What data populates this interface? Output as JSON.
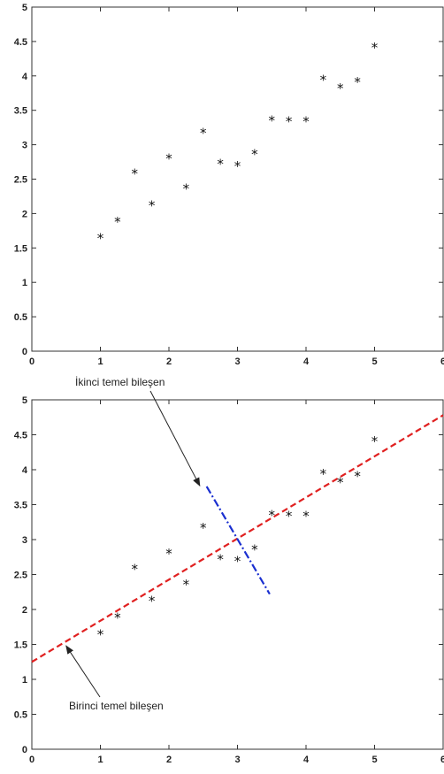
{
  "chart_data": [
    {
      "type": "scatter",
      "xlim": [
        0,
        6
      ],
      "ylim": [
        0,
        5
      ],
      "xticks": [
        "0",
        "1",
        "2",
        "3",
        "4",
        "5",
        "6"
      ],
      "yticks": [
        "0",
        "0.5",
        "1",
        "1.5",
        "2",
        "2.5",
        "3",
        "3.5",
        "4",
        "4.5",
        "5"
      ],
      "grid": false,
      "marker": "*",
      "x": [
        1,
        1.25,
        1.5,
        1.75,
        2,
        2.25,
        2.5,
        2.75,
        3,
        3.25,
        3.5,
        3.75,
        4,
        4.25,
        4.5,
        4.75,
        5
      ],
      "y": [
        1.65,
        1.89,
        2.59,
        2.13,
        2.81,
        2.37,
        3.18,
        2.73,
        2.7,
        2.87,
        3.36,
        3.35,
        3.35,
        3.95,
        3.83,
        3.92,
        4.42
      ]
    },
    {
      "type": "scatter",
      "xlim": [
        0,
        6
      ],
      "ylim": [
        0,
        5
      ],
      "xticks": [
        "0",
        "1",
        "2",
        "3",
        "4",
        "5",
        "6"
      ],
      "yticks": [
        "0",
        "0.5",
        "1",
        "1.5",
        "2",
        "2.5",
        "3",
        "3.5",
        "4",
        "4.5",
        "5"
      ],
      "grid": false,
      "marker": "*",
      "x": [
        1,
        1.25,
        1.5,
        1.75,
        2,
        2.25,
        2.5,
        2.75,
        3,
        3.25,
        3.5,
        3.75,
        4,
        4.25,
        4.5,
        4.75,
        5
      ],
      "y": [
        1.65,
        1.89,
        2.59,
        2.13,
        2.81,
        2.37,
        3.18,
        2.73,
        2.7,
        2.87,
        3.36,
        3.35,
        3.35,
        3.95,
        3.83,
        3.92,
        4.42
      ],
      "lines": [
        {
          "style": "dashed",
          "color": "#e02020",
          "x": [
            0,
            6
          ],
          "y": [
            1.25,
            4.78
          ]
        },
        {
          "style": "dash-dot",
          "color": "#1a2fd0",
          "x": [
            2.55,
            3.47
          ],
          "y": [
            3.76,
            2.22
          ]
        }
      ],
      "annotations": [
        {
          "text": "İkinci temel bileşen",
          "arrow_to": [
            2.45,
            3.77
          ]
        },
        {
          "text": "Birinci temel bileşen",
          "arrow_to": [
            0.5,
            1.48
          ]
        }
      ]
    }
  ]
}
